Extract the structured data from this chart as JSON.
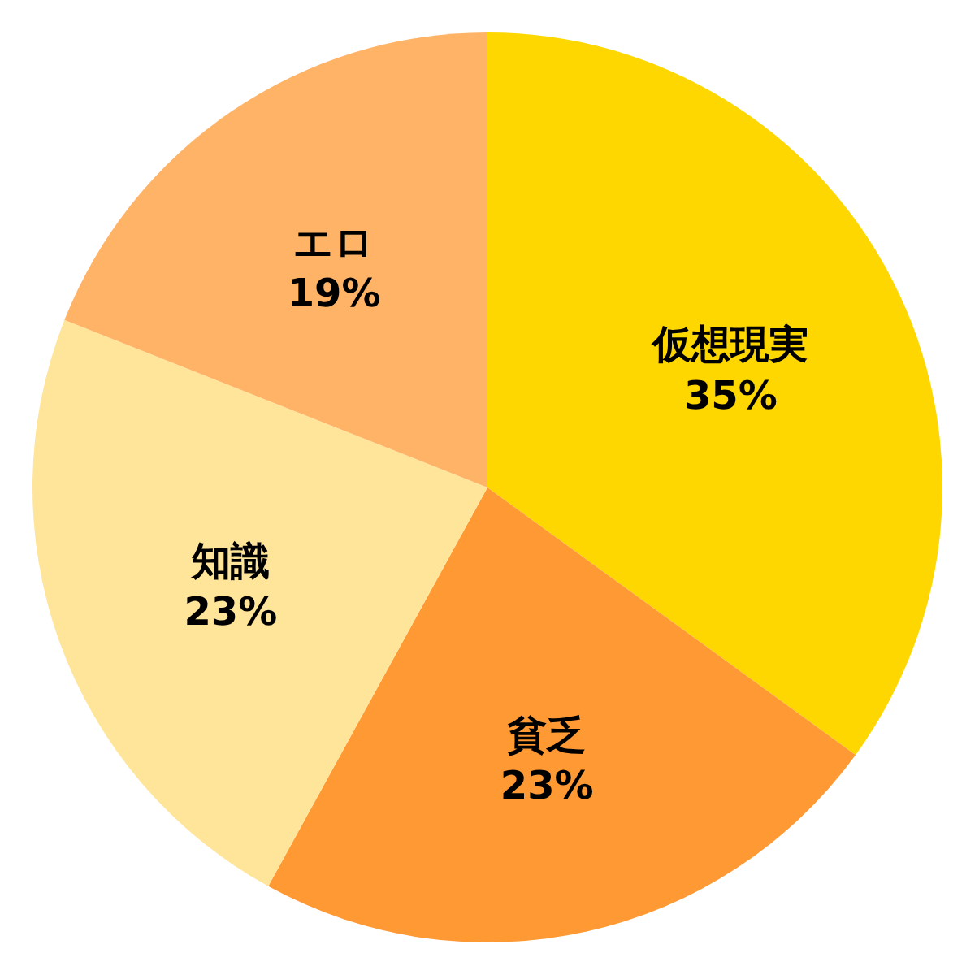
{
  "chart_data": {
    "type": "pie",
    "categories": [
      "仮想現実",
      "貧乏",
      "知識",
      "エロ"
    ],
    "values": [
      35,
      23,
      23,
      19
    ],
    "colors": [
      "#ffd700",
      "#ff9933",
      "#ffe599",
      "#ffb366"
    ],
    "value_labels": [
      "35%",
      "23%",
      "23%",
      "19%"
    ]
  }
}
